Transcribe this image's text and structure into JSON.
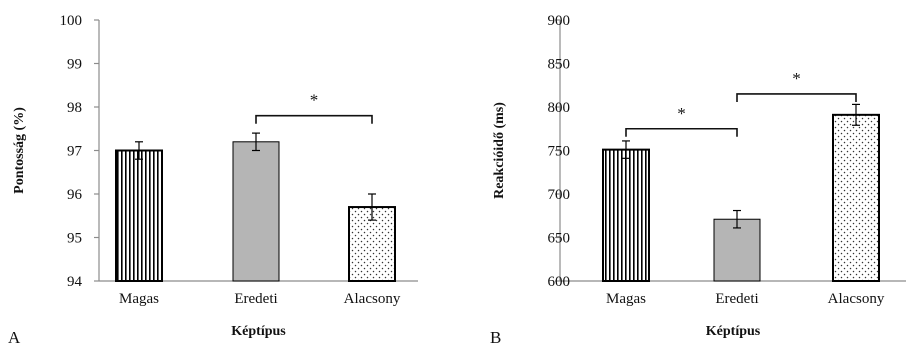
{
  "colors": {
    "axis": "#8c8c8c",
    "bar_outline": "#000000",
    "gray_fill": "#b5b5b5",
    "bracket": "#111111"
  },
  "chart_data": [
    {
      "type": "bar",
      "panel_label": "A",
      "categories": [
        "Magas",
        "Eredeti",
        "Alacsony"
      ],
      "values": [
        97.0,
        97.2,
        95.7
      ],
      "errors": [
        0.2,
        0.2,
        0.3
      ],
      "fills": [
        "vertical-stripes",
        "gray",
        "dots"
      ],
      "xlabel": "Képtípus",
      "ylabel": "Pontosság (%)",
      "ylim": [
        94,
        100
      ],
      "yticks": [
        94,
        95,
        96,
        97,
        98,
        99,
        100
      ],
      "grid": false,
      "significance": [
        {
          "from": "Eredeti",
          "to": "Alacsony",
          "label": "*",
          "level": 97.8
        }
      ]
    },
    {
      "type": "bar",
      "panel_label": "B",
      "categories": [
        "Magas",
        "Eredeti",
        "Alacsony"
      ],
      "values": [
        751,
        671,
        791
      ],
      "errors": [
        10,
        10,
        12
      ],
      "fills": [
        "vertical-stripes",
        "gray",
        "dots"
      ],
      "xlabel": "Képtípus",
      "ylabel": "Reakcióidő (ms)",
      "ylim": [
        600,
        900
      ],
      "yticks": [
        600,
        650,
        700,
        750,
        800,
        850,
        900
      ],
      "grid": false,
      "significance": [
        {
          "from": "Magas",
          "to": "Eredeti",
          "label": "*",
          "level": 775
        },
        {
          "from": "Eredeti",
          "to": "Alacsony",
          "label": "*",
          "level": 815
        }
      ]
    }
  ]
}
